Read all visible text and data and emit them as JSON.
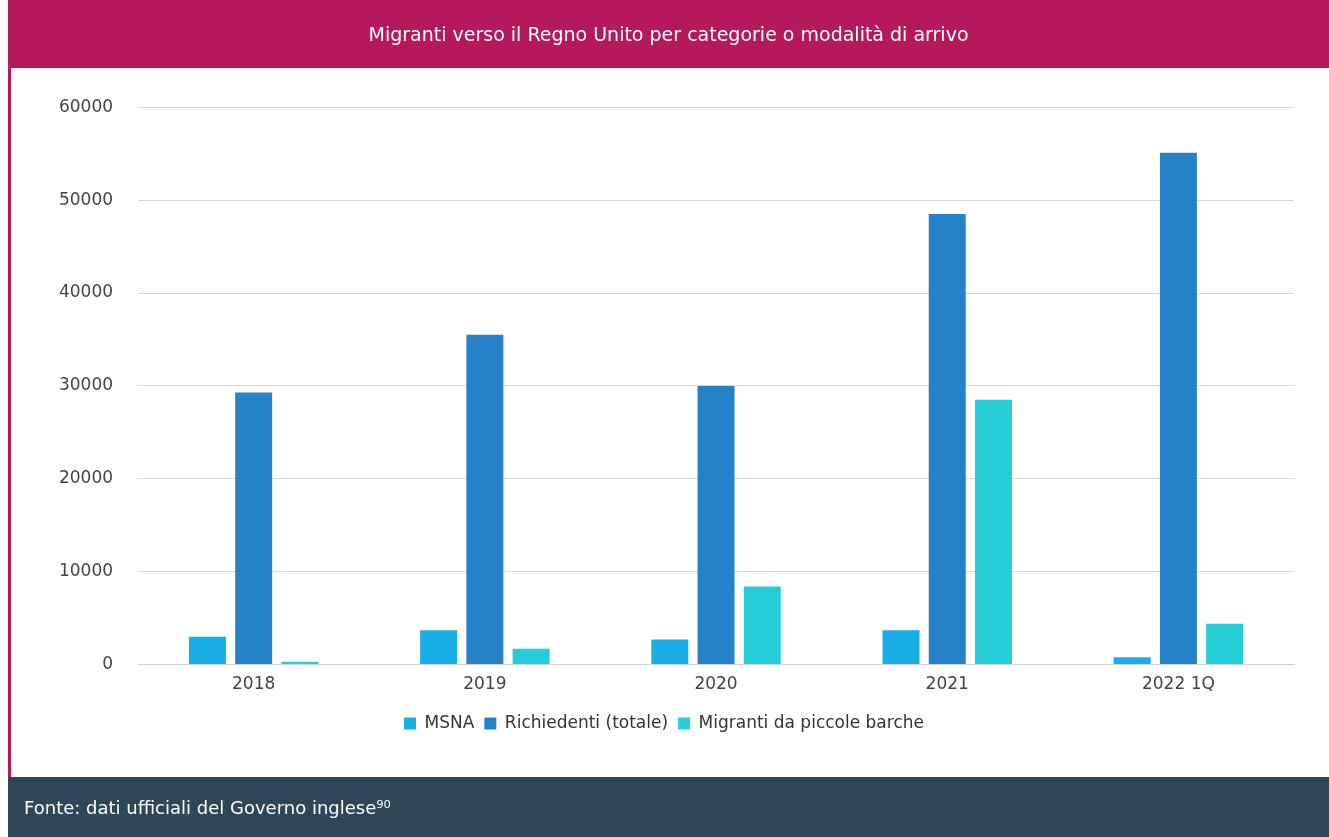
{
  "chart_data": {
    "type": "bar",
    "title": "Migranti verso il Regno Unito per categorie o modalità di arrivo",
    "categories": [
      "2018",
      "2019",
      "2020",
      "2021",
      "2022 1Q"
    ],
    "series": [
      {
        "name": "MSNA",
        "color": "#1aaee6",
        "values": [
          3000,
          3700,
          2700,
          3700,
          800
        ]
      },
      {
        "name": "Richiedenti (totale)",
        "color": "#2582c8",
        "values": [
          29300,
          35500,
          30000,
          48500,
          55100
        ]
      },
      {
        "name": "Migranti da piccole barche",
        "color": "#26cdd6",
        "values": [
          300,
          1700,
          8400,
          28500,
          4400
        ]
      }
    ],
    "ylim": [
      0,
      60000
    ],
    "yticks": [
      0,
      10000,
      20000,
      30000,
      40000,
      50000,
      60000
    ],
    "grid": "y",
    "legend": "bottom",
    "annotations": [
      "Fonte: dati ufficiali del Governo inglese⁹⁰"
    ]
  }
}
